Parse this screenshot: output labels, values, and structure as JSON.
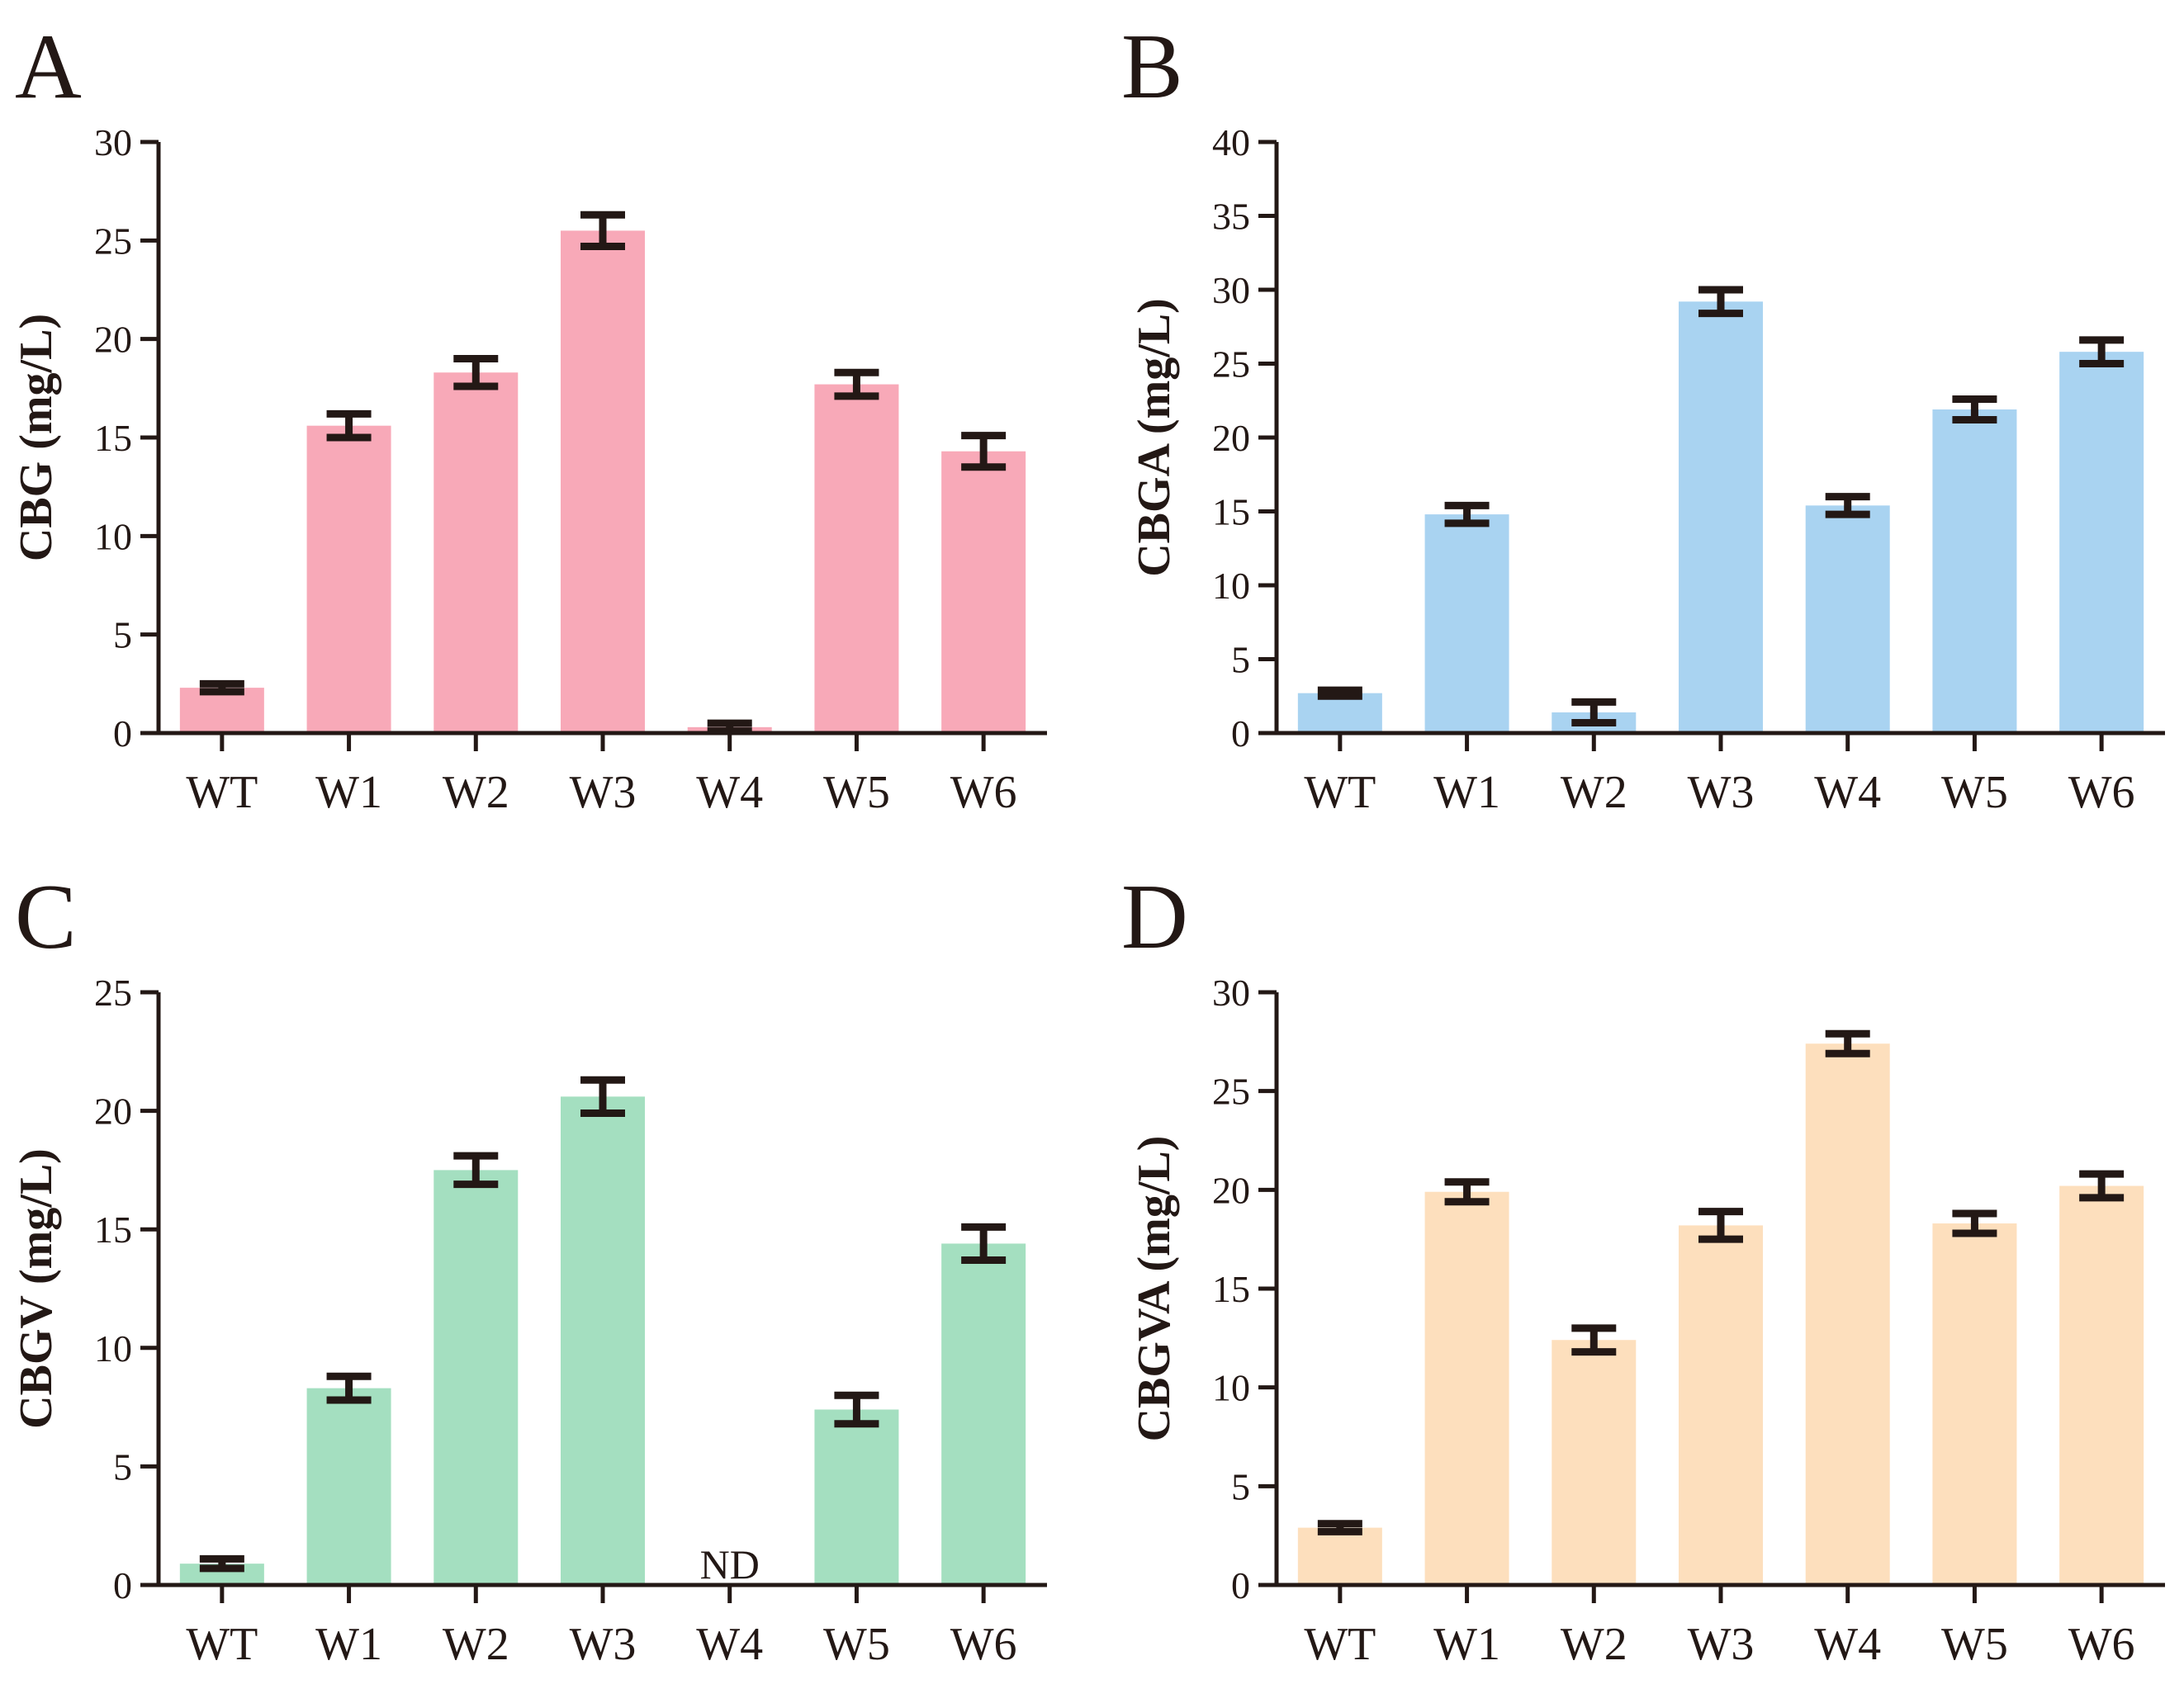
{
  "figure": {
    "colors": {
      "ink": "#231815",
      "A": "#f8a9b8",
      "B": "#a9d3f1",
      "C": "#a4dfc0",
      "D": "#fddfbd"
    }
  },
  "chart_data": [
    {
      "panel": "A",
      "type": "bar",
      "ylabel": "CBG (mg/L)",
      "ylim": [
        0,
        30
      ],
      "yticks": [
        0,
        5,
        10,
        15,
        20,
        25,
        30
      ],
      "categories": [
        "WT",
        "W1",
        "W2",
        "W3",
        "W4",
        "W5",
        "W6"
      ],
      "values": [
        2.3,
        15.6,
        18.3,
        25.5,
        0.3,
        17.7,
        14.3
      ],
      "errors": [
        0.2,
        0.6,
        0.7,
        0.8,
        0.2,
        0.6,
        0.8
      ],
      "color": "#f8a9b8"
    },
    {
      "panel": "B",
      "type": "bar",
      "ylabel": "CBGA (mg/L)",
      "ylim": [
        0,
        40
      ],
      "yticks": [
        0,
        5,
        10,
        15,
        20,
        25,
        30,
        35,
        40
      ],
      "categories": [
        "WT",
        "W1",
        "W2",
        "W3",
        "W4",
        "W5",
        "W6"
      ],
      "values": [
        2.7,
        14.8,
        1.4,
        29.2,
        15.4,
        21.9,
        25.8
      ],
      "errors": [
        0.2,
        0.6,
        0.7,
        0.8,
        0.6,
        0.7,
        0.8
      ],
      "color": "#a9d3f1"
    },
    {
      "panel": "C",
      "type": "bar",
      "ylabel": "CBGV (mg/L)",
      "ylim": [
        0,
        25
      ],
      "yticks": [
        0,
        5,
        10,
        15,
        20,
        25
      ],
      "categories": [
        "WT",
        "W1",
        "W2",
        "W3",
        "W4",
        "W5",
        "W6"
      ],
      "values": [
        0.9,
        8.3,
        17.5,
        20.6,
        null,
        7.4,
        14.4
      ],
      "errors": [
        0.2,
        0.5,
        0.6,
        0.7,
        null,
        0.6,
        0.7
      ],
      "annotations": [
        {
          "category": "W4",
          "text": "ND"
        }
      ],
      "color": "#a4dfc0"
    },
    {
      "panel": "D",
      "type": "bar",
      "ylabel": "CBGVA (mg/L)",
      "ylim": [
        0,
        30
      ],
      "yticks": [
        0,
        5,
        10,
        15,
        20,
        25,
        30
      ],
      "categories": [
        "WT",
        "W1",
        "W2",
        "W3",
        "W4",
        "W5",
        "W6"
      ],
      "values": [
        2.9,
        19.9,
        12.4,
        18.2,
        27.4,
        18.3,
        20.2
      ],
      "errors": [
        0.2,
        0.5,
        0.6,
        0.7,
        0.5,
        0.5,
        0.6
      ],
      "color": "#fddfbd"
    }
  ]
}
